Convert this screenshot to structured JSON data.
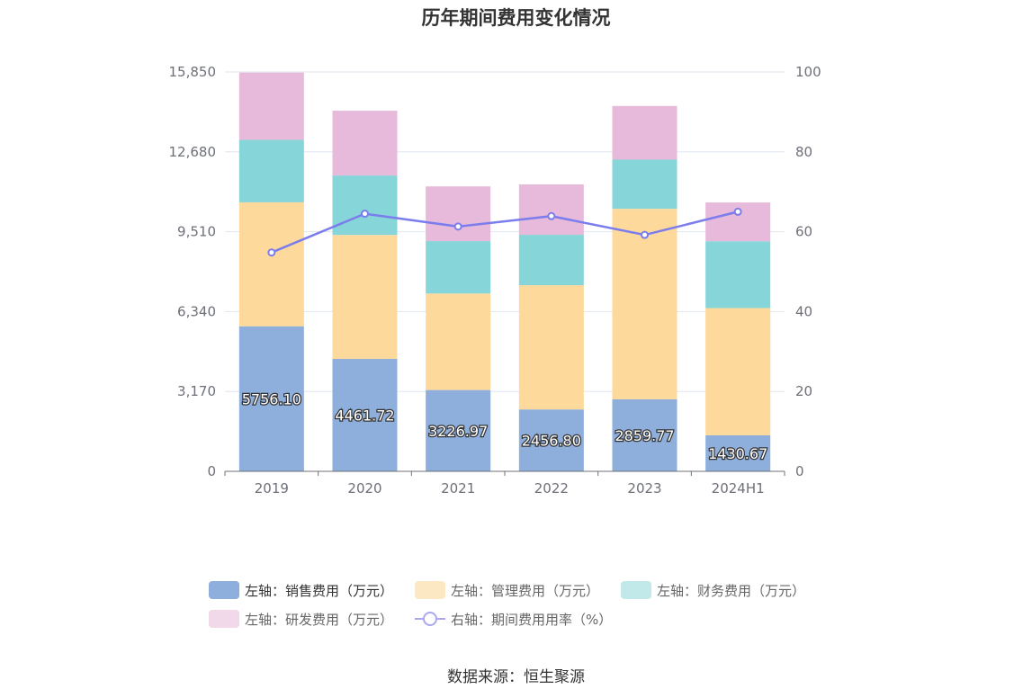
{
  "chart_data": {
    "type": "bar",
    "title": "历年期间费用变化情况",
    "categories": [
      "2019",
      "2020",
      "2021",
      "2022",
      "2023",
      "2024H1"
    ],
    "stacked": true,
    "y_left": {
      "ticks": [
        "0",
        "3,170",
        "6,340",
        "9,510",
        "12,680",
        "15,850"
      ],
      "ylim": [
        0,
        15850
      ]
    },
    "y_right": {
      "ticks": [
        "0",
        "20",
        "40",
        "60",
        "80",
        "100"
      ],
      "ylim": [
        0,
        100
      ]
    },
    "grid": true,
    "legend_position": "bottom",
    "series": [
      {
        "name": "左轴：销售费用（万元）",
        "axis": "left",
        "color": "#8eaedb",
        "values": [
          5756.1,
          4461.72,
          3226.97,
          2456.8,
          2859.77,
          1430.67
        ],
        "labels": [
          "5756.10",
          "4461.72",
          "3226.97",
          "2456.80",
          "2859.77",
          "1430.67"
        ]
      },
      {
        "name": "左轴：管理费用（万元）",
        "axis": "left",
        "color": "#fdd99b",
        "values": [
          4920,
          4920,
          3830,
          4930,
          7560,
          5050
        ]
      },
      {
        "name": "左轴：财务费用（万元）",
        "axis": "left",
        "color": "#86d5d9",
        "values": [
          2480,
          2360,
          2080,
          2000,
          1950,
          2650
        ]
      },
      {
        "name": "左轴：研发费用（万元）",
        "axis": "left",
        "color": "#e7b9da",
        "values": [
          2670,
          2570,
          2170,
          2000,
          2130,
          1540
        ]
      },
      {
        "name": "右轴：期间费用用率（%）",
        "axis": "right",
        "type": "line",
        "color": "#7b7ded",
        "values": [
          54.8,
          64.5,
          61.3,
          63.9,
          59.2,
          65.0
        ]
      }
    ]
  },
  "legend": {
    "items": [
      "左轴：销售费用（万元）",
      "左轴：管理费用（万元）",
      "左轴：财务费用（万元）",
      "左轴：研发费用（万元）",
      "右轴：期间费用用率（%）"
    ],
    "colors": [
      "#8eaedb",
      "#fde8c4",
      "#c2e9ea",
      "#f1d9ea",
      "#a9a8f0"
    ]
  },
  "source": "数据来源：恒生聚源"
}
